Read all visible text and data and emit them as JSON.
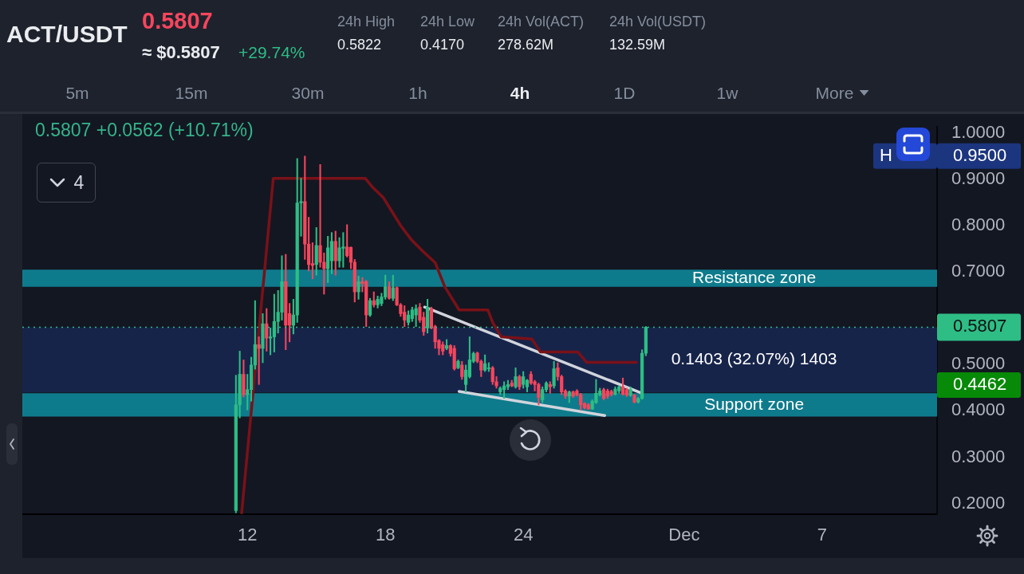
{
  "chart_data": {
    "type": "candlestick",
    "title": "ACT/USDT",
    "subtitle": "0.5807",
    "x": [
      "--11-11T12:00",
      "--11-11T16:00",
      "--11-11T20:00",
      "--11-12T00:00",
      "--11-12T04:00",
      "--11-12T08:00",
      "--11-12T12:00",
      "--11-12T16:00",
      "--11-12T20:00",
      "--11-13T00:00",
      "--11-13T04:00",
      "--11-13T08:00",
      "--11-13T12:00",
      "--11-13T16:00",
      "--11-13T20:00",
      "--11-14T00:00",
      "--11-14T04:00",
      "--11-14T08:00",
      "--11-14T12:00",
      "--11-14T16:00",
      "--11-14T20:00",
      "--11-15T00:00",
      "--11-15T04:00",
      "--11-15T08:00",
      "--11-15T12:00",
      "--11-15T16:00",
      "--11-15T20:00",
      "--11-16T00:00",
      "--11-16T04:00",
      "--11-16T08:00",
      "--11-16T12:00",
      "--11-16T16:00",
      "--11-16T20:00",
      "--11-17T00:00",
      "--11-17T04:00",
      "--11-17T08:00",
      "--11-17T12:00",
      "--11-17T16:00",
      "--11-17T20:00",
      "--11-18T00:00",
      "--11-18T04:00",
      "--11-18T08:00",
      "--11-18T12:00",
      "--11-18T16:00",
      "--11-18T20:00",
      "--11-19T00:00",
      "--11-19T04:00",
      "--11-19T08:00",
      "--11-19T12:00",
      "--11-19T16:00",
      "--11-19T20:00",
      "--11-20T00:00",
      "--11-20T04:00",
      "--11-20T08:00",
      "--11-20T12:00",
      "--11-20T16:00",
      "--11-20T20:00",
      "--11-21T00:00",
      "--11-21T04:00",
      "--11-21T08:00",
      "--11-21T12:00",
      "--11-21T16:00",
      "--11-21T20:00",
      "--11-22T00:00",
      "--11-22T04:00",
      "--11-22T08:00",
      "--11-22T12:00",
      "--11-22T16:00",
      "--11-22T20:00",
      "--11-23T00:00",
      "--11-23T04:00",
      "--11-23T08:00",
      "--11-23T12:00",
      "--11-23T16:00",
      "--11-23T20:00",
      "--11-24T00:00",
      "--11-24T04:00",
      "--11-24T08:00",
      "--11-24T12:00",
      "--11-24T16:00",
      "--11-24T20:00",
      "--11-25T00:00",
      "--11-25T04:00",
      "--11-25T08:00",
      "--11-25T12:00",
      "--11-25T16:00",
      "--11-25T20:00",
      "--11-26T00:00",
      "--11-26T04:00",
      "--11-26T08:00",
      "--11-26T12:00",
      "--11-26T16:00",
      "--11-26T20:00",
      "--11-27T00:00",
      "--11-27T04:00",
      "--11-27T08:00",
      "--11-27T12:00",
      "--11-27T16:00",
      "--11-27T20:00",
      "--11-28T00:00",
      "--11-28T04:00",
      "--11-28T08:00",
      "--11-28T12:00",
      "--11-28T16:00",
      "--11-28T20:00",
      "--11-29T00:00",
      "--11-29T04:00",
      "--11-29T08:00"
    ],
    "ohlc": [
      [
        0.185,
        0.477,
        0.18,
        0.413
      ],
      [
        0.413,
        0.529,
        0.385,
        0.479
      ],
      [
        0.479,
        0.51,
        0.43,
        0.435
      ],
      [
        0.435,
        0.479,
        0.402,
        0.446
      ],
      [
        0.446,
        0.516,
        0.421,
        0.499
      ],
      [
        0.499,
        0.638,
        0.49,
        0.543
      ],
      [
        0.543,
        0.56,
        0.457,
        0.535
      ],
      [
        0.535,
        0.61,
        0.504,
        0.588
      ],
      [
        0.588,
        0.621,
        0.529,
        0.557
      ],
      [
        0.557,
        0.579,
        0.521,
        0.56
      ],
      [
        0.56,
        0.652,
        0.527,
        0.593
      ],
      [
        0.593,
        0.66,
        0.568,
        0.613
      ],
      [
        0.613,
        0.735,
        0.596,
        0.679
      ],
      [
        0.679,
        0.738,
        0.532,
        0.585
      ],
      [
        0.61,
        0.632,
        0.549,
        0.585
      ],
      [
        0.585,
        0.641,
        0.566,
        0.607
      ],
      [
        0.607,
        0.945,
        0.591,
        0.849
      ],
      [
        0.849,
        0.902,
        0.777,
        0.852
      ],
      [
        0.852,
        0.95,
        0.727,
        0.76
      ],
      [
        0.76,
        0.818,
        0.702,
        0.716
      ],
      [
        0.718,
        0.763,
        0.685,
        0.714
      ],
      [
        0.716,
        0.796,
        0.693,
        0.757
      ],
      [
        0.757,
        0.932,
        0.71,
        0.721
      ],
      [
        0.721,
        0.741,
        0.652,
        0.707
      ],
      [
        0.707,
        0.777,
        0.677,
        0.752
      ],
      [
        0.724,
        0.785,
        0.696,
        0.766
      ],
      [
        0.766,
        0.788,
        0.693,
        0.724
      ],
      [
        0.724,
        0.774,
        0.71,
        0.752
      ],
      [
        0.751,
        0.785,
        0.71,
        0.754
      ],
      [
        0.754,
        0.802,
        0.732,
        0.735
      ],
      [
        0.753,
        0.754,
        0.707,
        0.721
      ],
      [
        0.721,
        0.727,
        0.635,
        0.657
      ],
      [
        0.657,
        0.691,
        0.641,
        0.679
      ],
      [
        0.679,
        0.688,
        0.657,
        0.675
      ],
      [
        0.679,
        0.682,
        0.582,
        0.607
      ],
      [
        0.607,
        0.643,
        0.604,
        0.638
      ],
      [
        0.638,
        0.657,
        0.624,
        0.629
      ],
      [
        0.629,
        0.648,
        0.622,
        0.641
      ],
      [
        0.632,
        0.654,
        0.627,
        0.646
      ],
      [
        0.646,
        0.693,
        0.641,
        0.668
      ],
      [
        0.668,
        0.679,
        0.641,
        0.643
      ],
      [
        0.643,
        0.693,
        0.638,
        0.666
      ],
      [
        0.666,
        0.668,
        0.627,
        0.629
      ],
      [
        0.629,
        0.632,
        0.604,
        0.61
      ],
      [
        0.613,
        0.627,
        0.582,
        0.596
      ],
      [
        0.591,
        0.616,
        0.585,
        0.607
      ],
      [
        0.599,
        0.624,
        0.593,
        0.618
      ],
      [
        0.607,
        0.629,
        0.582,
        0.621
      ],
      [
        0.624,
        0.632,
        0.591,
        0.596
      ],
      [
        0.602,
        0.613,
        0.563,
        0.571
      ],
      [
        0.579,
        0.641,
        0.568,
        0.624
      ],
      [
        0.621,
        0.624,
        0.577,
        0.579
      ],
      [
        0.582,
        0.585,
        0.535,
        0.549
      ],
      [
        0.552,
        0.554,
        0.521,
        0.535
      ],
      [
        0.543,
        0.549,
        0.521,
        0.529
      ],
      [
        0.535,
        0.554,
        0.532,
        0.541
      ],
      [
        0.541,
        0.543,
        0.518,
        0.524
      ],
      [
        0.535,
        0.541,
        0.488,
        0.491
      ],
      [
        0.493,
        0.51,
        0.491,
        0.507
      ],
      [
        0.499,
        0.507,
        0.468,
        0.474
      ],
      [
        0.457,
        0.499,
        0.441,
        0.488
      ],
      [
        0.474,
        0.56,
        0.471,
        0.51
      ],
      [
        0.507,
        0.527,
        0.504,
        0.524
      ],
      [
        0.525,
        0.527,
        0.504,
        0.507
      ],
      [
        0.507,
        0.51,
        0.474,
        0.488
      ],
      [
        0.488,
        0.521,
        0.485,
        0.502
      ],
      [
        0.491,
        0.504,
        0.485,
        0.493
      ],
      [
        0.493,
        0.496,
        0.457,
        0.463
      ],
      [
        0.463,
        0.474,
        0.449,
        0.454
      ],
      [
        0.441,
        0.452,
        0.435,
        0.449
      ],
      [
        0.446,
        0.463,
        0.427,
        0.454
      ],
      [
        0.452,
        0.466,
        0.446,
        0.457
      ],
      [
        0.46,
        0.466,
        0.452,
        0.454
      ],
      [
        0.452,
        0.493,
        0.449,
        0.474
      ],
      [
        0.474,
        0.477,
        0.446,
        0.452
      ],
      [
        0.457,
        0.485,
        0.449,
        0.474
      ],
      [
        0.452,
        0.468,
        0.441,
        0.466
      ],
      [
        0.479,
        0.485,
        0.457,
        0.46
      ],
      [
        0.463,
        0.466,
        0.443,
        0.457
      ],
      [
        0.457,
        0.46,
        0.413,
        0.429
      ],
      [
        0.424,
        0.452,
        0.418,
        0.446
      ],
      [
        0.446,
        0.463,
        0.441,
        0.46
      ],
      [
        0.457,
        0.463,
        0.438,
        0.452
      ],
      [
        0.454,
        0.507,
        0.449,
        0.491
      ],
      [
        0.493,
        0.504,
        0.466,
        0.474
      ],
      [
        0.474,
        0.477,
        0.435,
        0.441
      ],
      [
        0.443,
        0.446,
        0.427,
        0.432
      ],
      [
        0.432,
        0.443,
        0.418,
        0.441
      ],
      [
        0.441,
        0.443,
        0.429,
        0.432
      ],
      [
        0.443,
        0.446,
        0.432,
        0.435
      ],
      [
        0.435,
        0.438,
        0.402,
        0.413
      ],
      [
        0.416,
        0.418,
        0.404,
        0.407
      ],
      [
        0.413,
        0.416,
        0.403,
        0.404
      ],
      [
        0.404,
        0.424,
        0.403,
        0.421
      ],
      [
        0.418,
        0.468,
        0.416,
        0.438
      ],
      [
        0.435,
        0.449,
        0.432,
        0.443
      ],
      [
        0.446,
        0.449,
        0.424,
        0.427
      ],
      [
        0.443,
        0.447,
        0.427,
        0.432
      ],
      [
        0.442,
        0.445,
        0.432,
        0.436
      ],
      [
        0.436,
        0.452,
        0.434,
        0.447
      ],
      [
        0.443,
        0.454,
        0.438,
        0.452
      ],
      [
        0.452,
        0.471,
        0.434,
        0.436
      ],
      [
        0.446,
        0.449,
        0.431,
        0.434
      ],
      [
        0.434,
        0.452,
        0.431,
        0.446
      ],
      [
        0.434,
        0.436,
        0.417,
        0.419
      ],
      [
        0.419,
        0.429,
        0.417,
        0.427
      ],
      [
        0.427,
        0.532,
        0.425,
        0.5245
      ],
      [
        0.5245,
        0.5822,
        0.519,
        0.5807
      ]
    ],
    "series": [
      {
        "type": "line",
        "color": "#7a1118",
        "x": [
          "--11-11T18:00",
          "--11-13T03:00",
          "--11-17T03:00",
          "--11-17T11:00",
          "--11-17T22:00",
          "--11-18T07:00",
          "--11-18T16:00",
          "--11-19T03:00",
          "--11-19T15:00",
          "--11-20T04:00",
          "--11-20T14:00",
          "--11-21T05:00",
          "--11-22T11:00",
          "--11-22T16:00",
          "--11-23T01:00",
          "--11-24T09:00",
          "--11-24T18:00",
          "--11-26T09:00",
          "--11-26T18:00",
          "--11-28T22:00"
        ],
        "values": [
          0.18,
          0.902,
          0.902,
          0.882,
          0.86,
          0.83,
          0.8,
          0.77,
          0.745,
          0.72,
          0.668,
          0.618,
          0.618,
          0.591,
          0.56,
          0.555,
          0.527,
          0.527,
          0.505,
          0.505
        ]
      },
      {
        "type": "line",
        "color": "#d1d4dc",
        "x": [
          "--11-19T17:00",
          "--11-29T04:00"
        ],
        "values": [
          0.624,
          0.438
        ]
      },
      {
        "type": "line",
        "color": "#d1d4dc",
        "x": [
          "--11-21T05:00",
          "--11-27T13:00"
        ],
        "values": [
          0.442,
          0.39
        ]
      }
    ],
    "xlim": [
      "--11-02T05:00",
      "--12-12T00:00"
    ],
    "ylim": [
      0.177,
      1.013
    ],
    "xticks": [
      {
        "value": "--11-12",
        "label": "12"
      },
      {
        "value": "--11-18",
        "label": "18"
      },
      {
        "value": "--11-24",
        "label": "24"
      },
      {
        "value": "--12-01",
        "label": "Dec"
      },
      {
        "value": "--12-07",
        "label": "7"
      }
    ],
    "yticks": [
      {
        "value": 0.2,
        "label": "0.2000"
      },
      {
        "value": 0.3,
        "label": "0.3000"
      },
      {
        "value": 0.4,
        "label": "0.4000"
      },
      {
        "value": 0.5,
        "label": "0.5000"
      },
      {
        "value": 0.7,
        "label": "0.7000"
      },
      {
        "value": 0.8,
        "label": "0.8000"
      },
      {
        "value": 0.9,
        "label": "0.9000"
      },
      {
        "value": 1,
        "label": "1.0000"
      }
    ],
    "bands": [
      {
        "axis": "y",
        "from": 0.668,
        "to": 0.705,
        "label": "Resistance zone",
        "color": "#0e7b8c"
      },
      {
        "axis": "y",
        "from": 0.44,
        "to": 0.5807,
        "label": "0.1403 (32.07%) 1403",
        "color": "#17244a"
      },
      {
        "axis": "y",
        "from": 0.388,
        "to": 0.438,
        "label": "Support zone",
        "color": "#0e7b8c"
      }
    ],
    "ref_lines": [
      {
        "axis": "y",
        "value": 0.5807,
        "label": "0.5807",
        "color": "#2ebd85",
        "line_style": "dotted"
      }
    ],
    "annotations": [
      "≈ $0.5807",
      "+29.74%",
      "24h High",
      "0.5822",
      "24h Low",
      "0.4170",
      "24h Vol(ACT)",
      "278.62M",
      "24h Vol(USDT)",
      "132.59M",
      "5m",
      "15m",
      "30m",
      "1h",
      "4h",
      "1D",
      "1w",
      "More",
      "0.5807 +0.0562 (+10.71%)",
      "4",
      "0.9500",
      "H",
      "0.4462"
    ]
  }
}
